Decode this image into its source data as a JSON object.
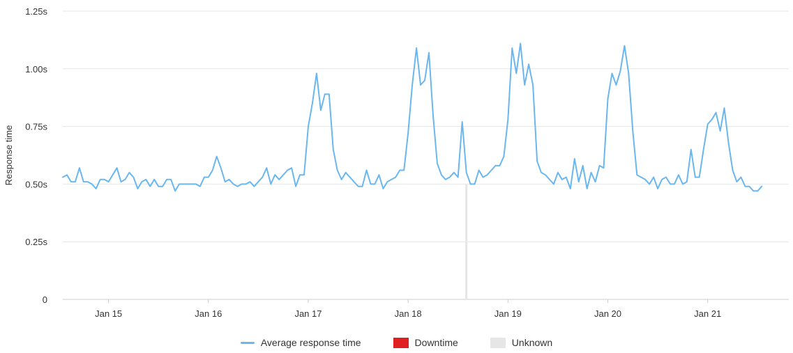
{
  "colors": {
    "line": "#6ab7f0",
    "downtime": "#e02020",
    "unknown": "#e6e6e6",
    "grid": "#e6e6e6",
    "axis_text": "#333333"
  },
  "legend": {
    "average": "Average response time",
    "downtime": "Downtime",
    "unknown": "Unknown"
  },
  "chart_data": {
    "type": "line",
    "title": "",
    "xlabel": "",
    "ylabel": "Response time",
    "ylim": [
      0,
      1.25
    ],
    "xlim": [
      "2022-01-14 13:00",
      "2022-01-21 19:30"
    ],
    "y_ticks": [
      {
        "value": 0,
        "label": "0"
      },
      {
        "value": 0.25,
        "label": "0.25s"
      },
      {
        "value": 0.5,
        "label": "0.50s"
      },
      {
        "value": 0.75,
        "label": "0.75s"
      },
      {
        "value": 1.0,
        "label": "1.00s"
      },
      {
        "value": 1.25,
        "label": "1.25s"
      }
    ],
    "x_ticks": [
      {
        "value": "2022-01-15",
        "label": "Jan 15"
      },
      {
        "value": "2022-01-16",
        "label": "Jan 16"
      },
      {
        "value": "2022-01-17",
        "label": "Jan 17"
      },
      {
        "value": "2022-01-18",
        "label": "Jan 18"
      },
      {
        "value": "2022-01-19",
        "label": "Jan 19"
      },
      {
        "value": "2022-01-20",
        "label": "Jan 20"
      },
      {
        "value": "2022-01-21",
        "label": "Jan 21"
      }
    ],
    "grid": "horizontal",
    "legend_position": "bottom-center",
    "unknown_marker": "2022-01-18 14:00",
    "series": [
      {
        "name": "Average response time",
        "x_start": "2022-01-14 13:00",
        "x_step_hours": 1,
        "values": [
          0.53,
          0.54,
          0.51,
          0.51,
          0.57,
          0.51,
          0.51,
          0.5,
          0.48,
          0.52,
          0.52,
          0.51,
          0.54,
          0.57,
          0.51,
          0.52,
          0.55,
          0.53,
          0.48,
          0.51,
          0.52,
          0.49,
          0.52,
          0.49,
          0.49,
          0.52,
          0.52,
          0.47,
          0.5,
          0.5,
          0.5,
          0.5,
          0.5,
          0.49,
          0.53,
          0.53,
          0.56,
          0.62,
          0.57,
          0.51,
          0.52,
          0.5,
          0.49,
          0.5,
          0.5,
          0.51,
          0.49,
          0.51,
          0.53,
          0.57,
          0.5,
          0.54,
          0.52,
          0.54,
          0.56,
          0.57,
          0.49,
          0.54,
          0.54,
          0.75,
          0.85,
          0.98,
          0.82,
          0.89,
          0.89,
          0.65,
          0.56,
          0.52,
          0.55,
          0.53,
          0.51,
          0.49,
          0.49,
          0.56,
          0.5,
          0.5,
          0.54,
          0.48,
          0.51,
          0.52,
          0.53,
          0.56,
          0.56,
          0.72,
          0.93,
          1.09,
          0.93,
          0.95,
          1.07,
          0.8,
          0.59,
          0.54,
          0.52,
          0.53,
          0.55,
          0.53,
          0.77,
          0.55,
          0.5,
          0.5,
          0.56,
          0.53,
          0.54,
          0.56,
          0.58,
          0.58,
          0.62,
          0.78,
          1.09,
          0.98,
          1.11,
          0.93,
          1.02,
          0.93,
          0.6,
          0.55,
          0.54,
          0.52,
          0.5,
          0.55,
          0.52,
          0.53,
          0.48,
          0.61,
          0.51,
          0.58,
          0.48,
          0.55,
          0.51,
          0.58,
          0.57,
          0.87,
          0.98,
          0.93,
          0.99,
          1.1,
          0.98,
          0.73,
          0.54,
          0.53,
          0.52,
          0.5,
          0.53,
          0.48,
          0.52,
          0.53,
          0.5,
          0.5,
          0.54,
          0.5,
          0.51,
          0.65,
          0.53,
          0.53,
          0.65,
          0.76,
          0.78,
          0.81,
          0.73,
          0.83,
          0.68,
          0.56,
          0.51,
          0.53,
          0.49,
          0.49,
          0.47,
          0.47,
          0.49
        ]
      }
    ]
  }
}
